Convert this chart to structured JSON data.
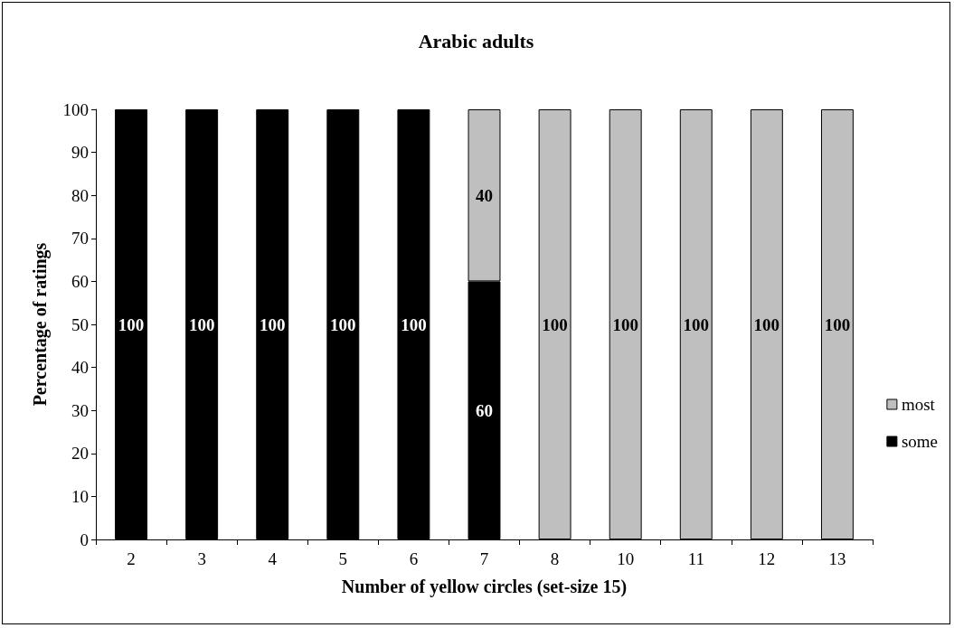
{
  "chart_data": {
    "type": "bar",
    "title": "Arabic adults",
    "xlabel": "Number of yellow circles (set-size 15)",
    "ylabel": "Percentage of ratings",
    "categories": [
      "2",
      "3",
      "4",
      "5",
      "6",
      "7",
      "8",
      "10",
      "11",
      "12",
      "13"
    ],
    "stacked": true,
    "series": [
      {
        "name": "some",
        "color": "#000000",
        "values": [
          100,
          100,
          100,
          100,
          100,
          60,
          0,
          0,
          0,
          0,
          0
        ],
        "value_labels": [
          "100",
          "100",
          "100",
          "100",
          "100",
          "60",
          null,
          null,
          null,
          null,
          null
        ]
      },
      {
        "name": "most",
        "color": "#bfbfbf",
        "values": [
          0,
          0,
          0,
          0,
          0,
          40,
          100,
          100,
          100,
          100,
          100
        ],
        "value_labels": [
          null,
          null,
          null,
          null,
          null,
          "40",
          "100",
          "100",
          "100",
          "100",
          "100"
        ]
      }
    ],
    "ylim": [
      0,
      100
    ],
    "yticks": [
      0,
      10,
      20,
      30,
      40,
      50,
      60,
      70,
      80,
      90,
      100
    ],
    "grid": false,
    "legend": "right"
  }
}
